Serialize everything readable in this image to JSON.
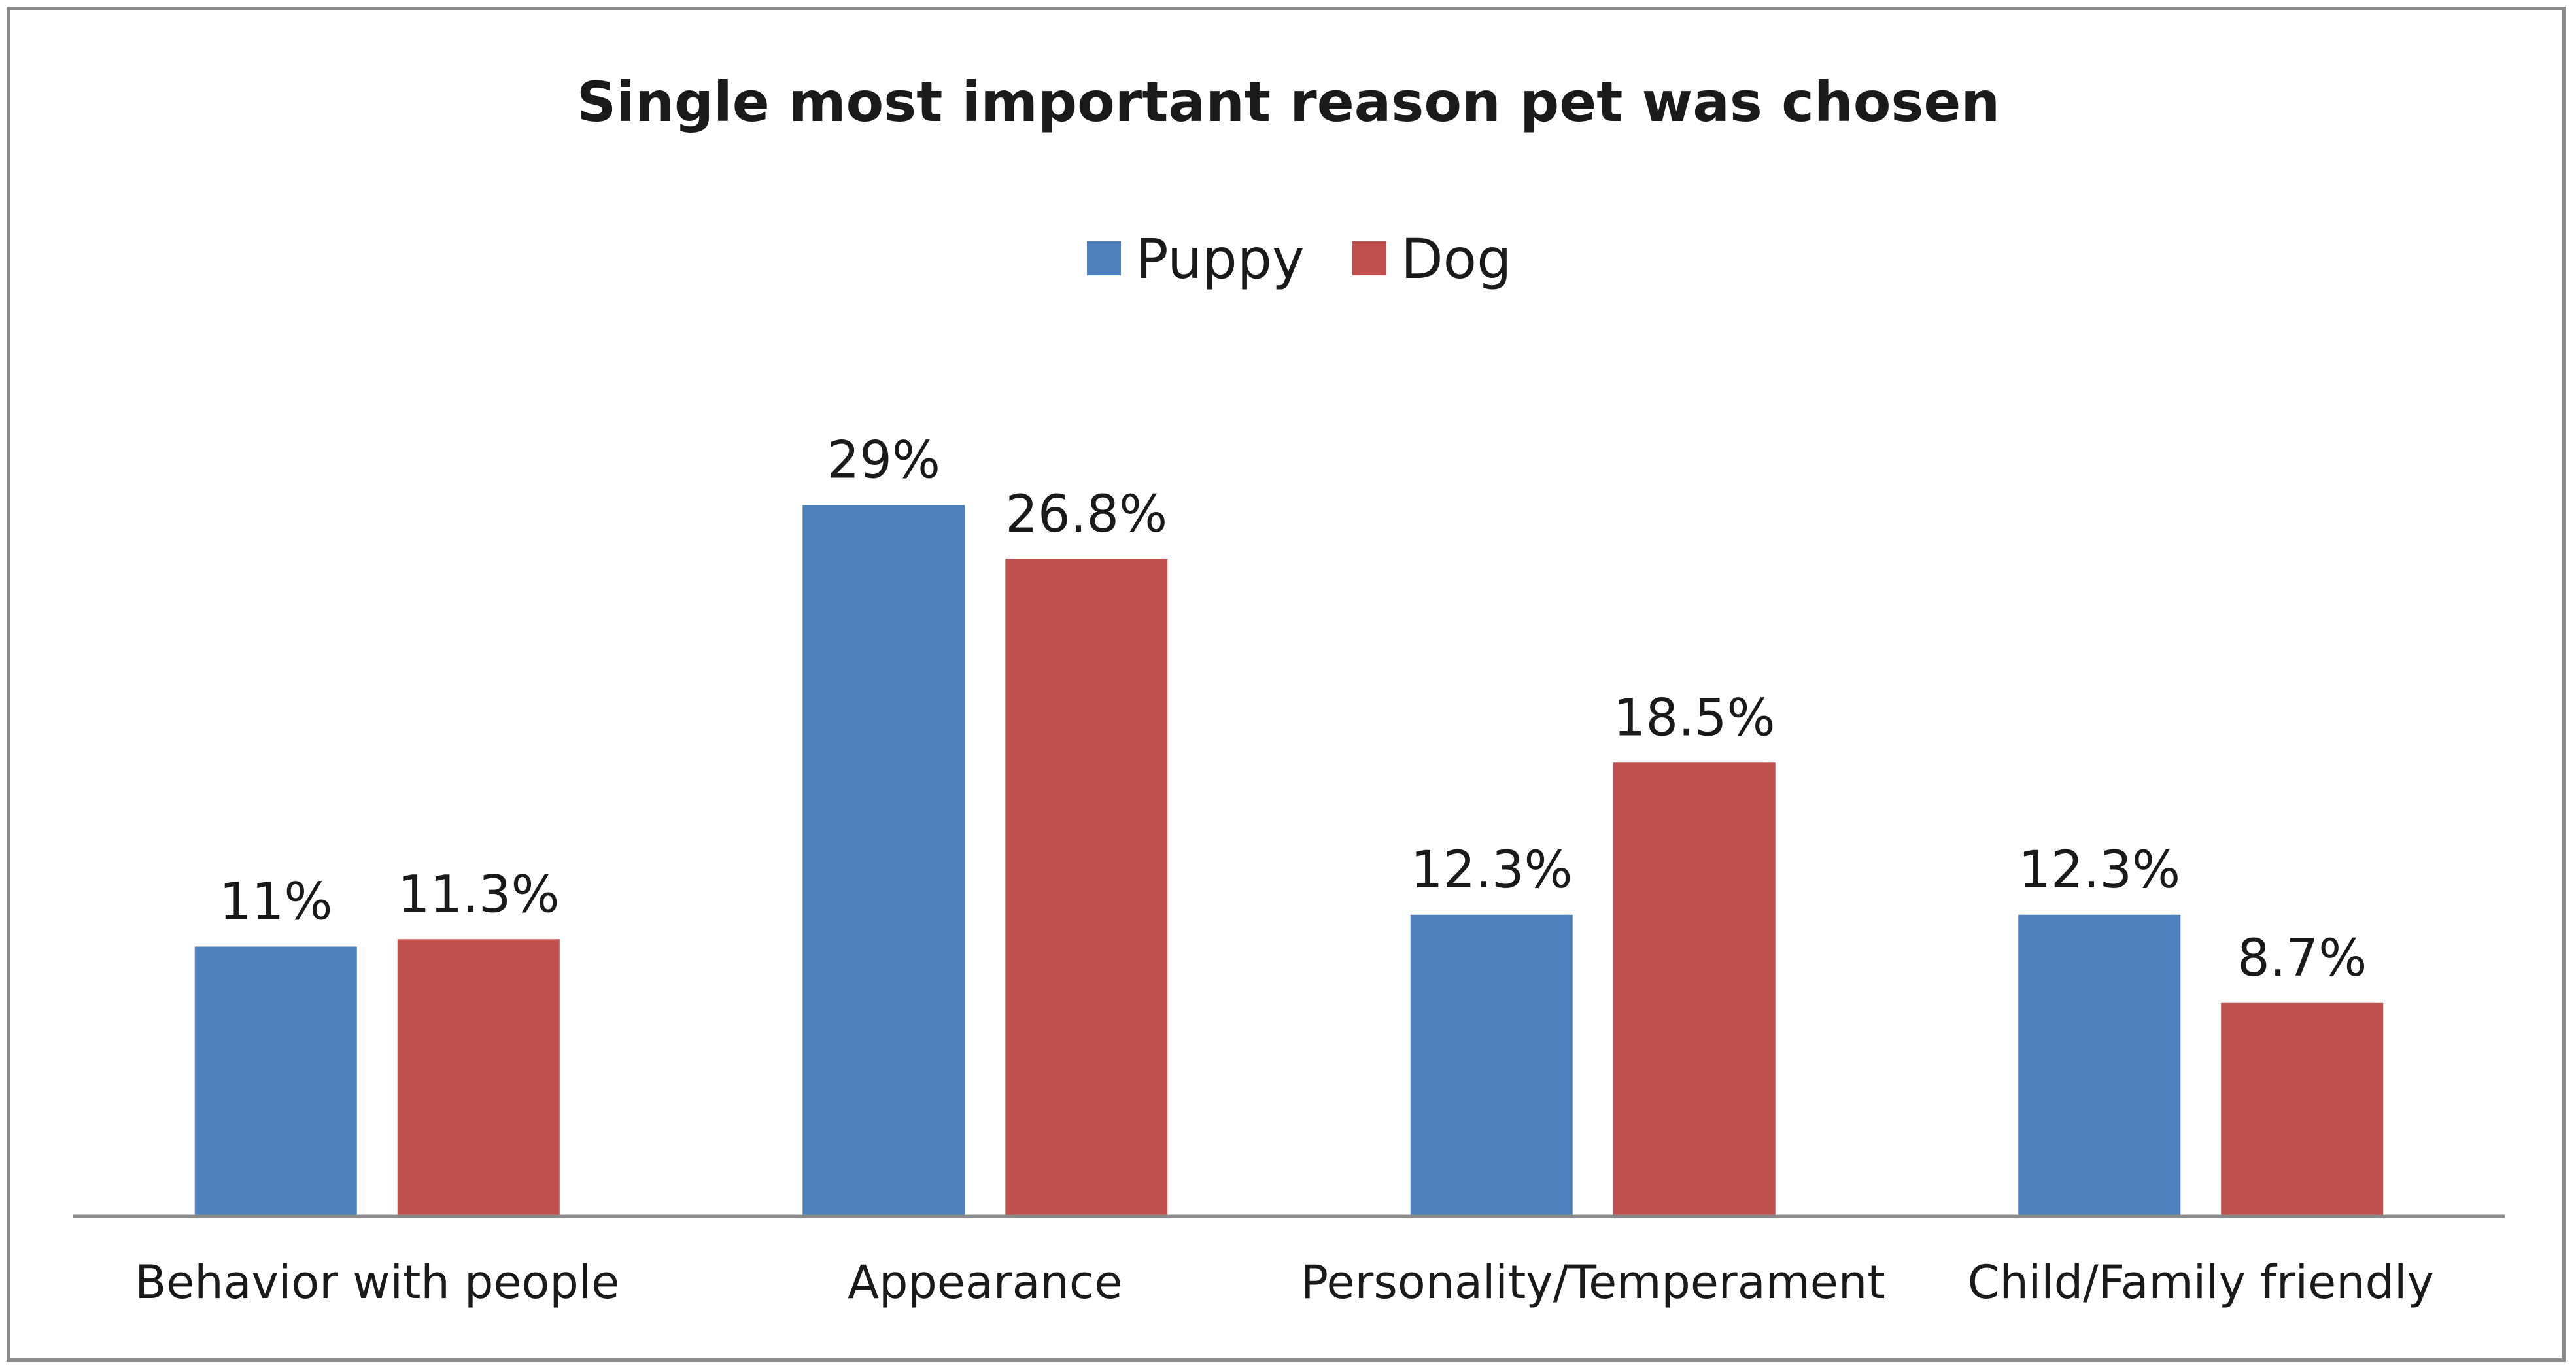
{
  "chart_data": {
    "type": "bar",
    "title": "Single most important reason pet was chosen",
    "xlabel": "",
    "ylabel": "",
    "ylim": [
      0,
      32
    ],
    "grid": false,
    "legend_position": "top-center",
    "categories": [
      "Behavior with people",
      "Appearance",
      "Personality/Temperament",
      "Child/Family friendly"
    ],
    "series": [
      {
        "name": "Puppy",
        "color": "#4f81bd",
        "values": [
          11,
          29,
          12.3,
          12.3
        ],
        "labels": [
          "11%",
          "29%",
          "12.3%",
          "12.3%"
        ]
      },
      {
        "name": "Dog",
        "color": "#c0504d",
        "values": [
          11.3,
          26.8,
          18.5,
          8.7
        ],
        "labels": [
          "11.3%",
          "26.8%",
          "18.5%",
          "8.7%"
        ]
      }
    ],
    "axis_color": "#8c8c8c"
  }
}
